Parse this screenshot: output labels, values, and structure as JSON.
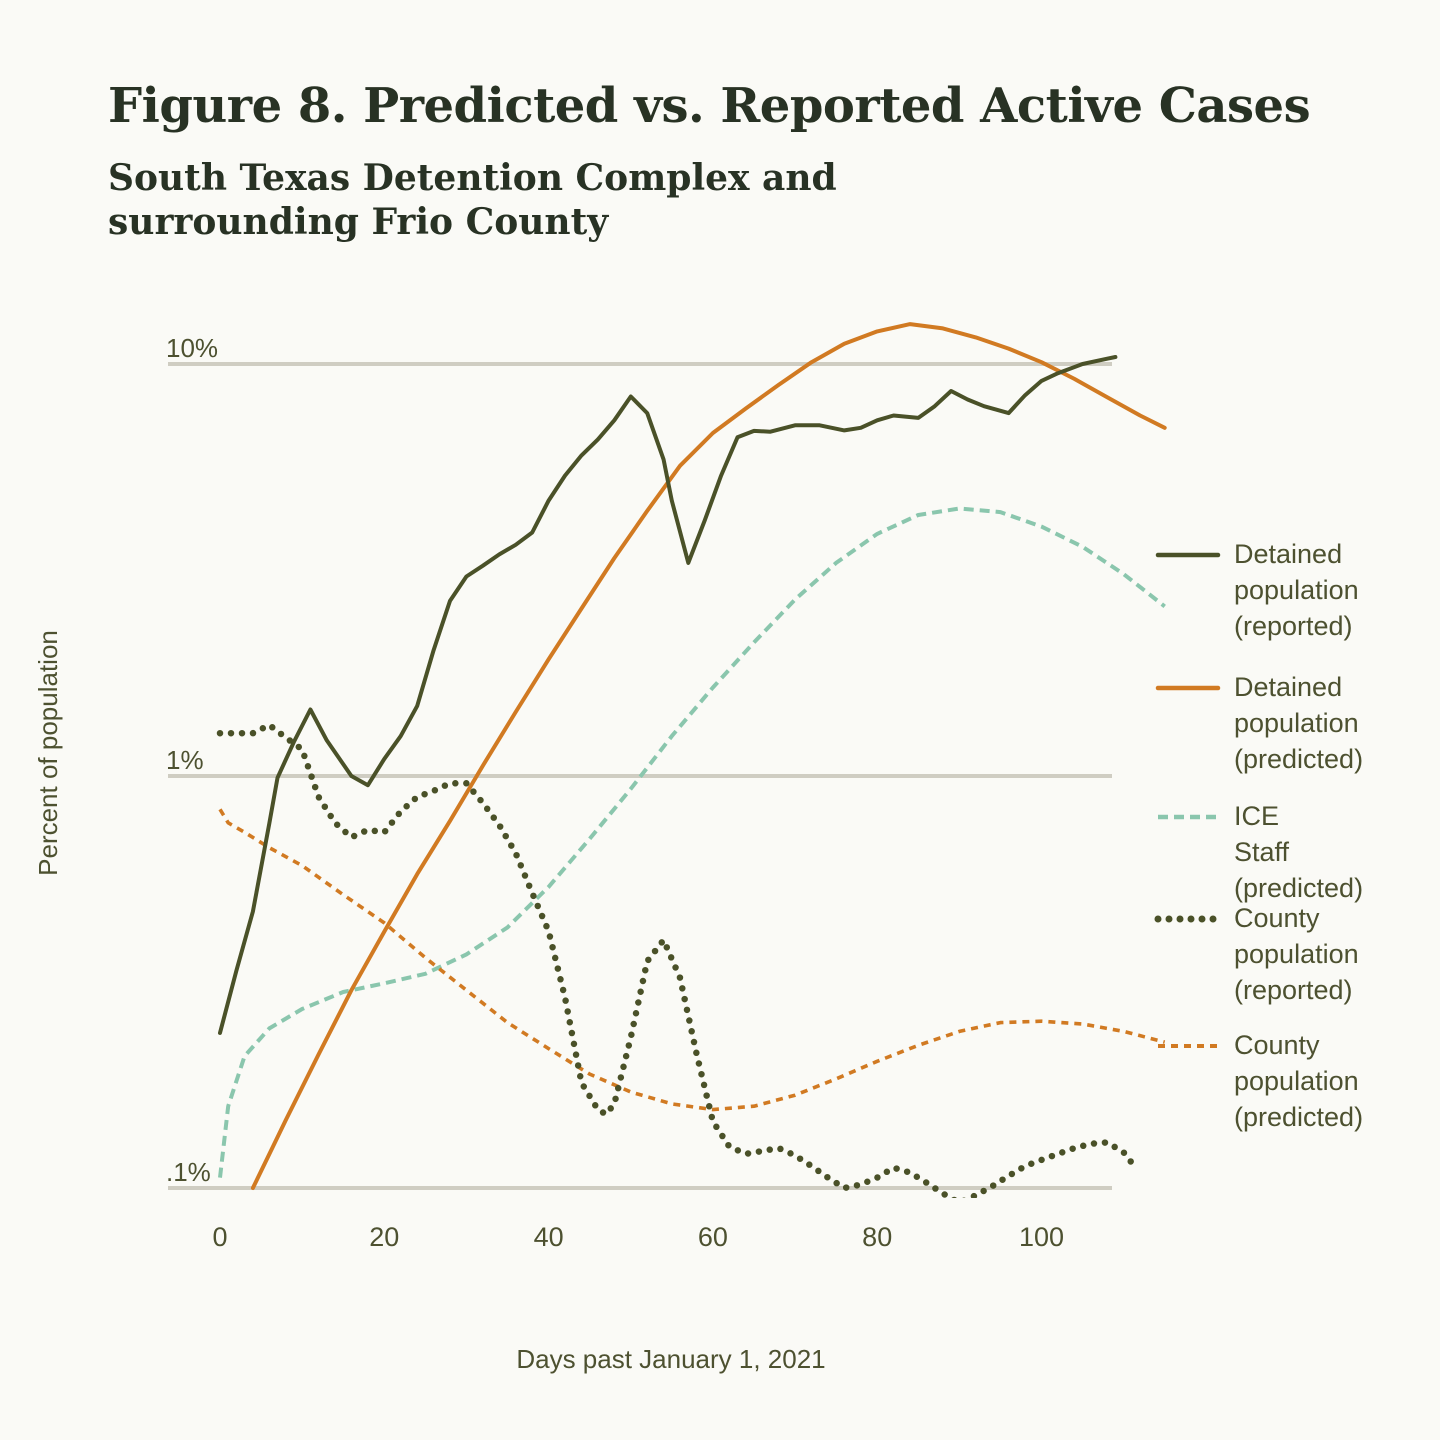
{
  "chart_data": {
    "type": "line",
    "title": "Figure 8. Predicted vs. Reported Active Cases",
    "subtitle": "South Texas Detention Complex and surrounding Frio County",
    "xlabel": "Days past January 1, 2021",
    "ylabel": "Percent of population",
    "xlim": [
      -6,
      116
    ],
    "ylim": [
      0.1,
      10
    ],
    "yscale": "log",
    "xticks": [
      0,
      20,
      40,
      60,
      80,
      100
    ],
    "xtick_labels": [
      "0",
      "20",
      "40",
      "60",
      "80",
      "100"
    ],
    "yticks": [
      10,
      1,
      0.1
    ],
    "ytick_labels": [
      "10%",
      "1%",
      ".1%"
    ],
    "grid": "horizontal at y ticks",
    "legend_position": "right",
    "series": [
      {
        "name": "Detained population (reported)",
        "color": "#4a5128",
        "style": "solid",
        "x": [
          0,
          2,
          4,
          6,
          7,
          9,
          11,
          13,
          16,
          18,
          20,
          22,
          24,
          26,
          28,
          30,
          32,
          34,
          36,
          38,
          40,
          42,
          44,
          46,
          48,
          50,
          52,
          54,
          55,
          57,
          59,
          61,
          63,
          65,
          67,
          70,
          73,
          76,
          78,
          80,
          82,
          85,
          87,
          89,
          91,
          93,
          96,
          98,
          100,
          102,
          105,
          108,
          109
        ],
        "y": [
          0.238,
          0.337,
          0.469,
          0.767,
          0.99,
          1.21,
          1.45,
          1.22,
          1.0,
          0.95,
          1.1,
          1.25,
          1.48,
          2.02,
          2.66,
          3.05,
          3.24,
          3.45,
          3.64,
          3.9,
          4.66,
          5.36,
          6.0,
          6.56,
          7.3,
          8.34,
          7.6,
          5.86,
          4.66,
          3.29,
          4.17,
          5.36,
          6.64,
          6.88,
          6.85,
          7.1,
          7.1,
          6.9,
          7.0,
          7.3,
          7.5,
          7.4,
          7.9,
          8.6,
          8.2,
          7.9,
          7.6,
          8.4,
          9.1,
          9.5,
          10.0,
          10.3,
          10.4
        ]
      },
      {
        "name": "Detained population (predicted)",
        "color": "#d17a22",
        "style": "solid",
        "x": [
          4,
          8,
          12,
          16,
          20,
          24,
          28,
          32,
          36,
          40,
          44,
          48,
          52,
          56,
          60,
          64,
          68,
          72,
          76,
          80,
          84,
          88,
          92,
          96,
          100,
          104,
          108,
          112,
          115
        ],
        "y": [
          0.1,
          0.146,
          0.211,
          0.302,
          0.419,
          0.578,
          0.778,
          1.06,
          1.43,
          1.92,
          2.55,
          3.38,
          4.4,
          5.66,
          6.8,
          7.8,
          8.9,
          10.1,
          11.2,
          12.0,
          12.5,
          12.2,
          11.6,
          10.9,
          10.1,
          9.2,
          8.3,
          7.5,
          7.0
        ]
      },
      {
        "name": "ICE Staff (predicted)",
        "color": "#8ac6ad",
        "style": "dashed",
        "x": [
          0,
          1,
          3,
          6,
          10,
          15,
          20,
          25,
          30,
          35,
          40,
          45,
          50,
          55,
          60,
          65,
          70,
          75,
          80,
          85,
          90,
          95,
          100,
          105,
          110,
          115
        ],
        "y": [
          0.106,
          0.158,
          0.209,
          0.244,
          0.272,
          0.299,
          0.314,
          0.331,
          0.369,
          0.429,
          0.538,
          0.704,
          0.931,
          1.25,
          1.64,
          2.11,
          2.68,
          3.29,
          3.87,
          4.3,
          4.46,
          4.37,
          4.03,
          3.6,
          3.09,
          2.58
        ]
      },
      {
        "name": "County population (reported)",
        "color": "#4a5128",
        "style": "dotted",
        "x": [
          0,
          4,
          6,
          8,
          10,
          12,
          14,
          16,
          18,
          20,
          22,
          24,
          26,
          28,
          30,
          32,
          34,
          36,
          38,
          40,
          42,
          44,
          46,
          47,
          48,
          50,
          52,
          54,
          56,
          58,
          60,
          62,
          64,
          66,
          68,
          70,
          72,
          74,
          76,
          78,
          80,
          82,
          84,
          86,
          88,
          90,
          92,
          94,
          96,
          98,
          100,
          102,
          104,
          106,
          108,
          110,
          111
        ],
        "y": [
          1.27,
          1.27,
          1.33,
          1.24,
          1.16,
          0.89,
          0.77,
          0.71,
          0.74,
          0.73,
          0.82,
          0.89,
          0.92,
          0.96,
          0.96,
          0.86,
          0.76,
          0.65,
          0.52,
          0.42,
          0.29,
          0.18,
          0.155,
          0.151,
          0.16,
          0.232,
          0.355,
          0.4,
          0.324,
          0.212,
          0.145,
          0.126,
          0.121,
          0.123,
          0.125,
          0.12,
          0.113,
          0.106,
          0.1,
          0.102,
          0.106,
          0.112,
          0.109,
          0.103,
          0.097,
          0.092,
          0.096,
          0.101,
          0.107,
          0.113,
          0.117,
          0.121,
          0.125,
          0.128,
          0.129,
          0.122,
          0.115
        ]
      },
      {
        "name": "County population (predicted)",
        "color": "#d17a22",
        "style": "dashed",
        "x": [
          0,
          1,
          3,
          6,
          10,
          15,
          20,
          25,
          30,
          35,
          40,
          45,
          50,
          55,
          60,
          65,
          70,
          75,
          80,
          85,
          90,
          95,
          100,
          105,
          110,
          115
        ],
        "y": [
          0.83,
          0.77,
          0.73,
          0.67,
          0.606,
          0.515,
          0.44,
          0.362,
          0.302,
          0.252,
          0.218,
          0.189,
          0.171,
          0.16,
          0.155,
          0.158,
          0.168,
          0.184,
          0.203,
          0.222,
          0.24,
          0.252,
          0.254,
          0.25,
          0.24,
          0.226
        ]
      }
    ]
  }
}
